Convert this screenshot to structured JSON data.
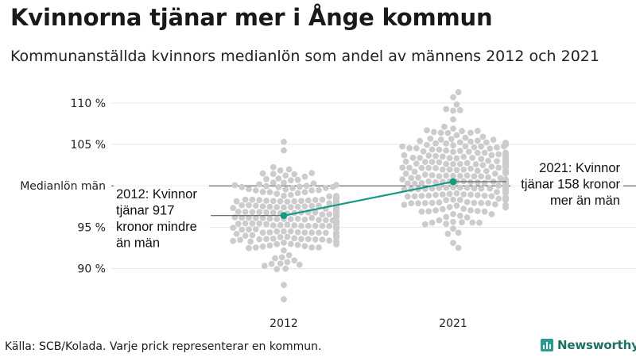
{
  "title": "Kvinnorna tjänar mer i Ånge kommun",
  "subtitle": "Kommunanställda kvinnors medianlön som andel av männens 2012 och 2021",
  "source": "Källa: SCB/Kolada. Varje prick representerar en kommun.",
  "brand": {
    "name": "Newsworthy",
    "logo": "newsworthy-logo-icon",
    "color": "#2a9d8f"
  },
  "colors": {
    "dots": "#cccccc",
    "highlight": "#159a84",
    "gridline": "#e6e6e6",
    "refline": "#444444"
  },
  "chart_data": {
    "type": "scatter",
    "subtype": "beeswarm",
    "title": "Kvinnorna tjänar mer i Ånge kommun",
    "categories": [
      "2012",
      "2021"
    ],
    "ylim": [
      86,
      112
    ],
    "yticks": [
      {
        "value": 90,
        "label": "90 %"
      },
      {
        "value": 95,
        "label": "95 %"
      },
      {
        "value": 105,
        "label": "105 %"
      },
      {
        "value": 110,
        "label": "110 %"
      }
    ],
    "reference_line": {
      "value": 100,
      "label": "Medianlön män"
    },
    "distributions": [
      {
        "category": "2012",
        "n": 290,
        "min": 86.3,
        "max": 105.3,
        "center": 96.0,
        "spread": 2.7
      },
      {
        "category": "2021",
        "n": 290,
        "min": 92.5,
        "max": 111.3,
        "center": 101.2,
        "spread": 3.0
      }
    ],
    "highlight": {
      "name": "Ånge",
      "values": [
        {
          "category": "2012",
          "value": 96.4
        },
        {
          "category": "2021",
          "value": 100.5
        }
      ]
    },
    "annotations": [
      {
        "category": "2012",
        "lines": [
          "2012: Kvinnor",
          "tjänar 917",
          "kronor mindre",
          "än män"
        ]
      },
      {
        "category": "2021",
        "lines": [
          "2021: Kvinnor",
          "tjänar 158 kronor",
          "mer än män"
        ]
      }
    ]
  }
}
